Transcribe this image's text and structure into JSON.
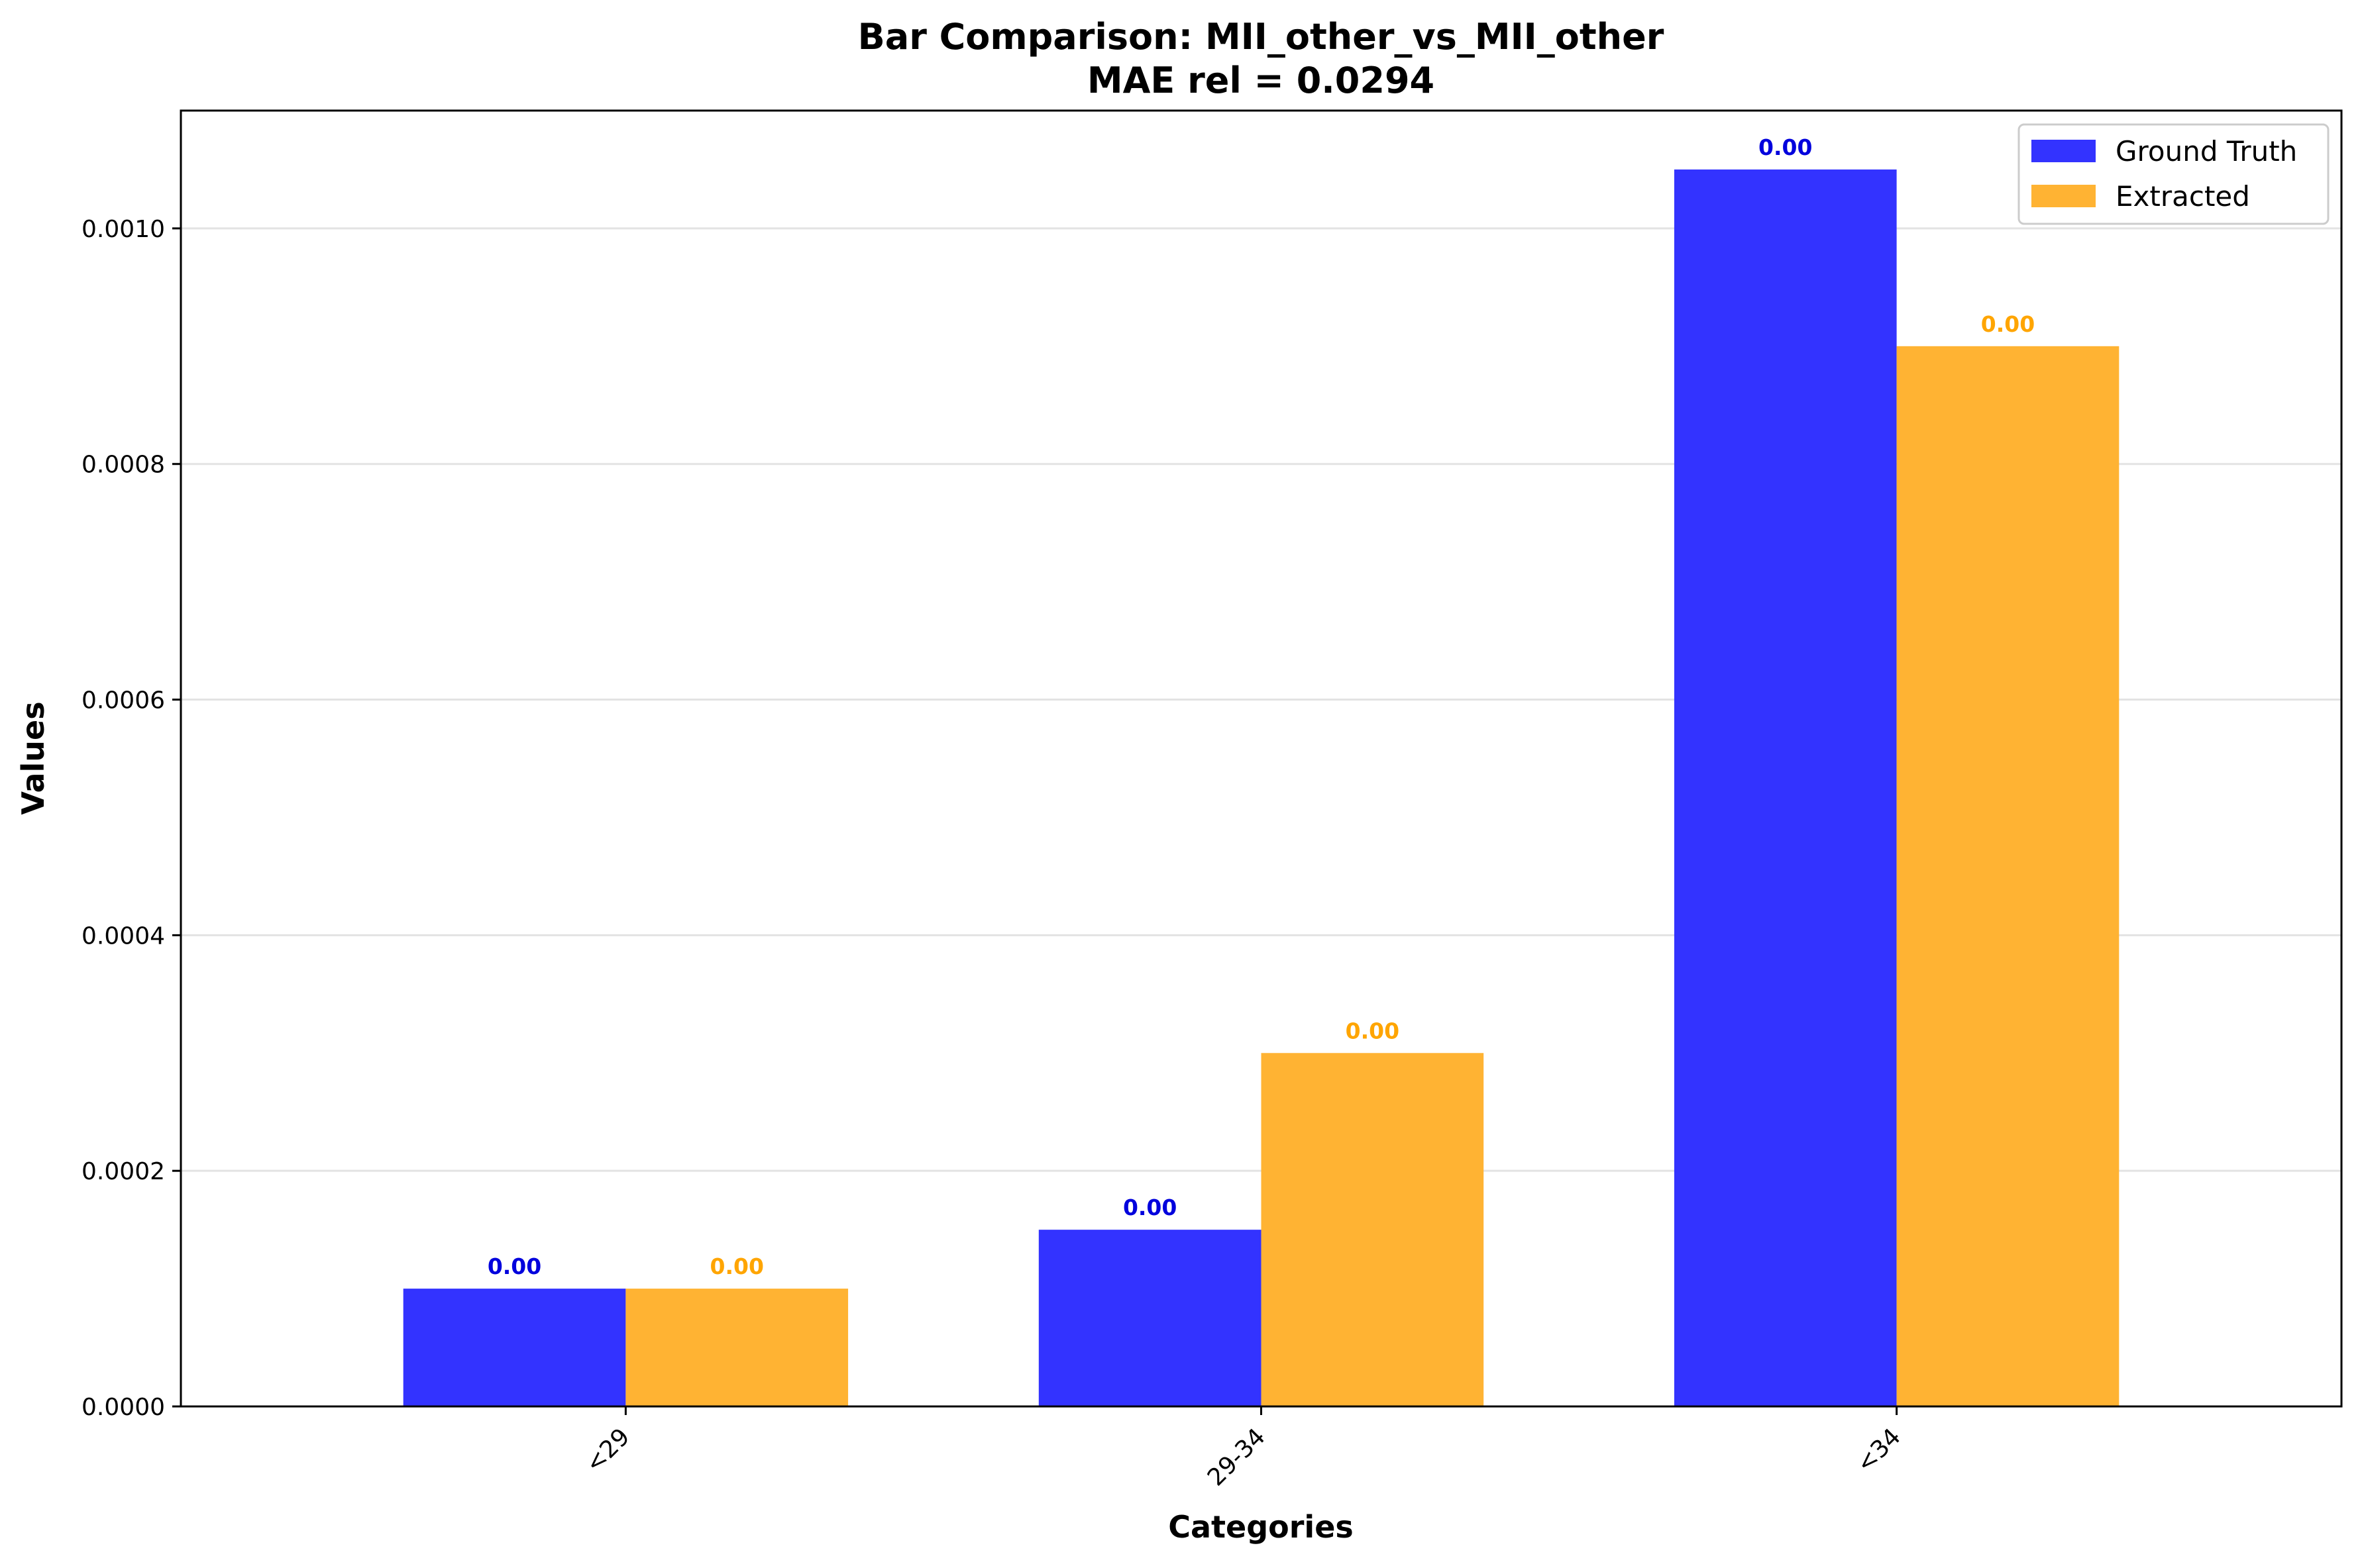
{
  "chart_data": {
    "type": "bar",
    "title": "Bar Comparison: MII_other_vs_MII_other",
    "subtitle": "MAE rel = 0.0294",
    "xlabel": "Categories",
    "ylabel": "Values",
    "categories": [
      "<29",
      "29-34",
      "<34"
    ],
    "series": [
      {
        "name": "Ground Truth",
        "color": "#3333ff",
        "label_color": "#0000dd",
        "values": [
          0.0001,
          0.00015,
          0.00105
        ],
        "labels": [
          "0.00",
          "0.00",
          "0.00"
        ]
      },
      {
        "name": "Extracted",
        "color": "#ffb333",
        "label_color": "#ffa500",
        "values": [
          0.0001,
          0.0003,
          0.0009
        ],
        "labels": [
          "0.00",
          "0.00",
          "0.00"
        ]
      }
    ],
    "ylim": [
      0,
      0.0011
    ],
    "yticks": [
      0,
      0.0002,
      0.0004,
      0.0006,
      0.0008,
      0.001
    ],
    "ytick_labels": [
      "0.0000",
      "0.0002",
      "0.0004",
      "0.0006",
      "0.0008",
      "0.0010"
    ],
    "grid": "horizontal",
    "legend": "top-right"
  }
}
